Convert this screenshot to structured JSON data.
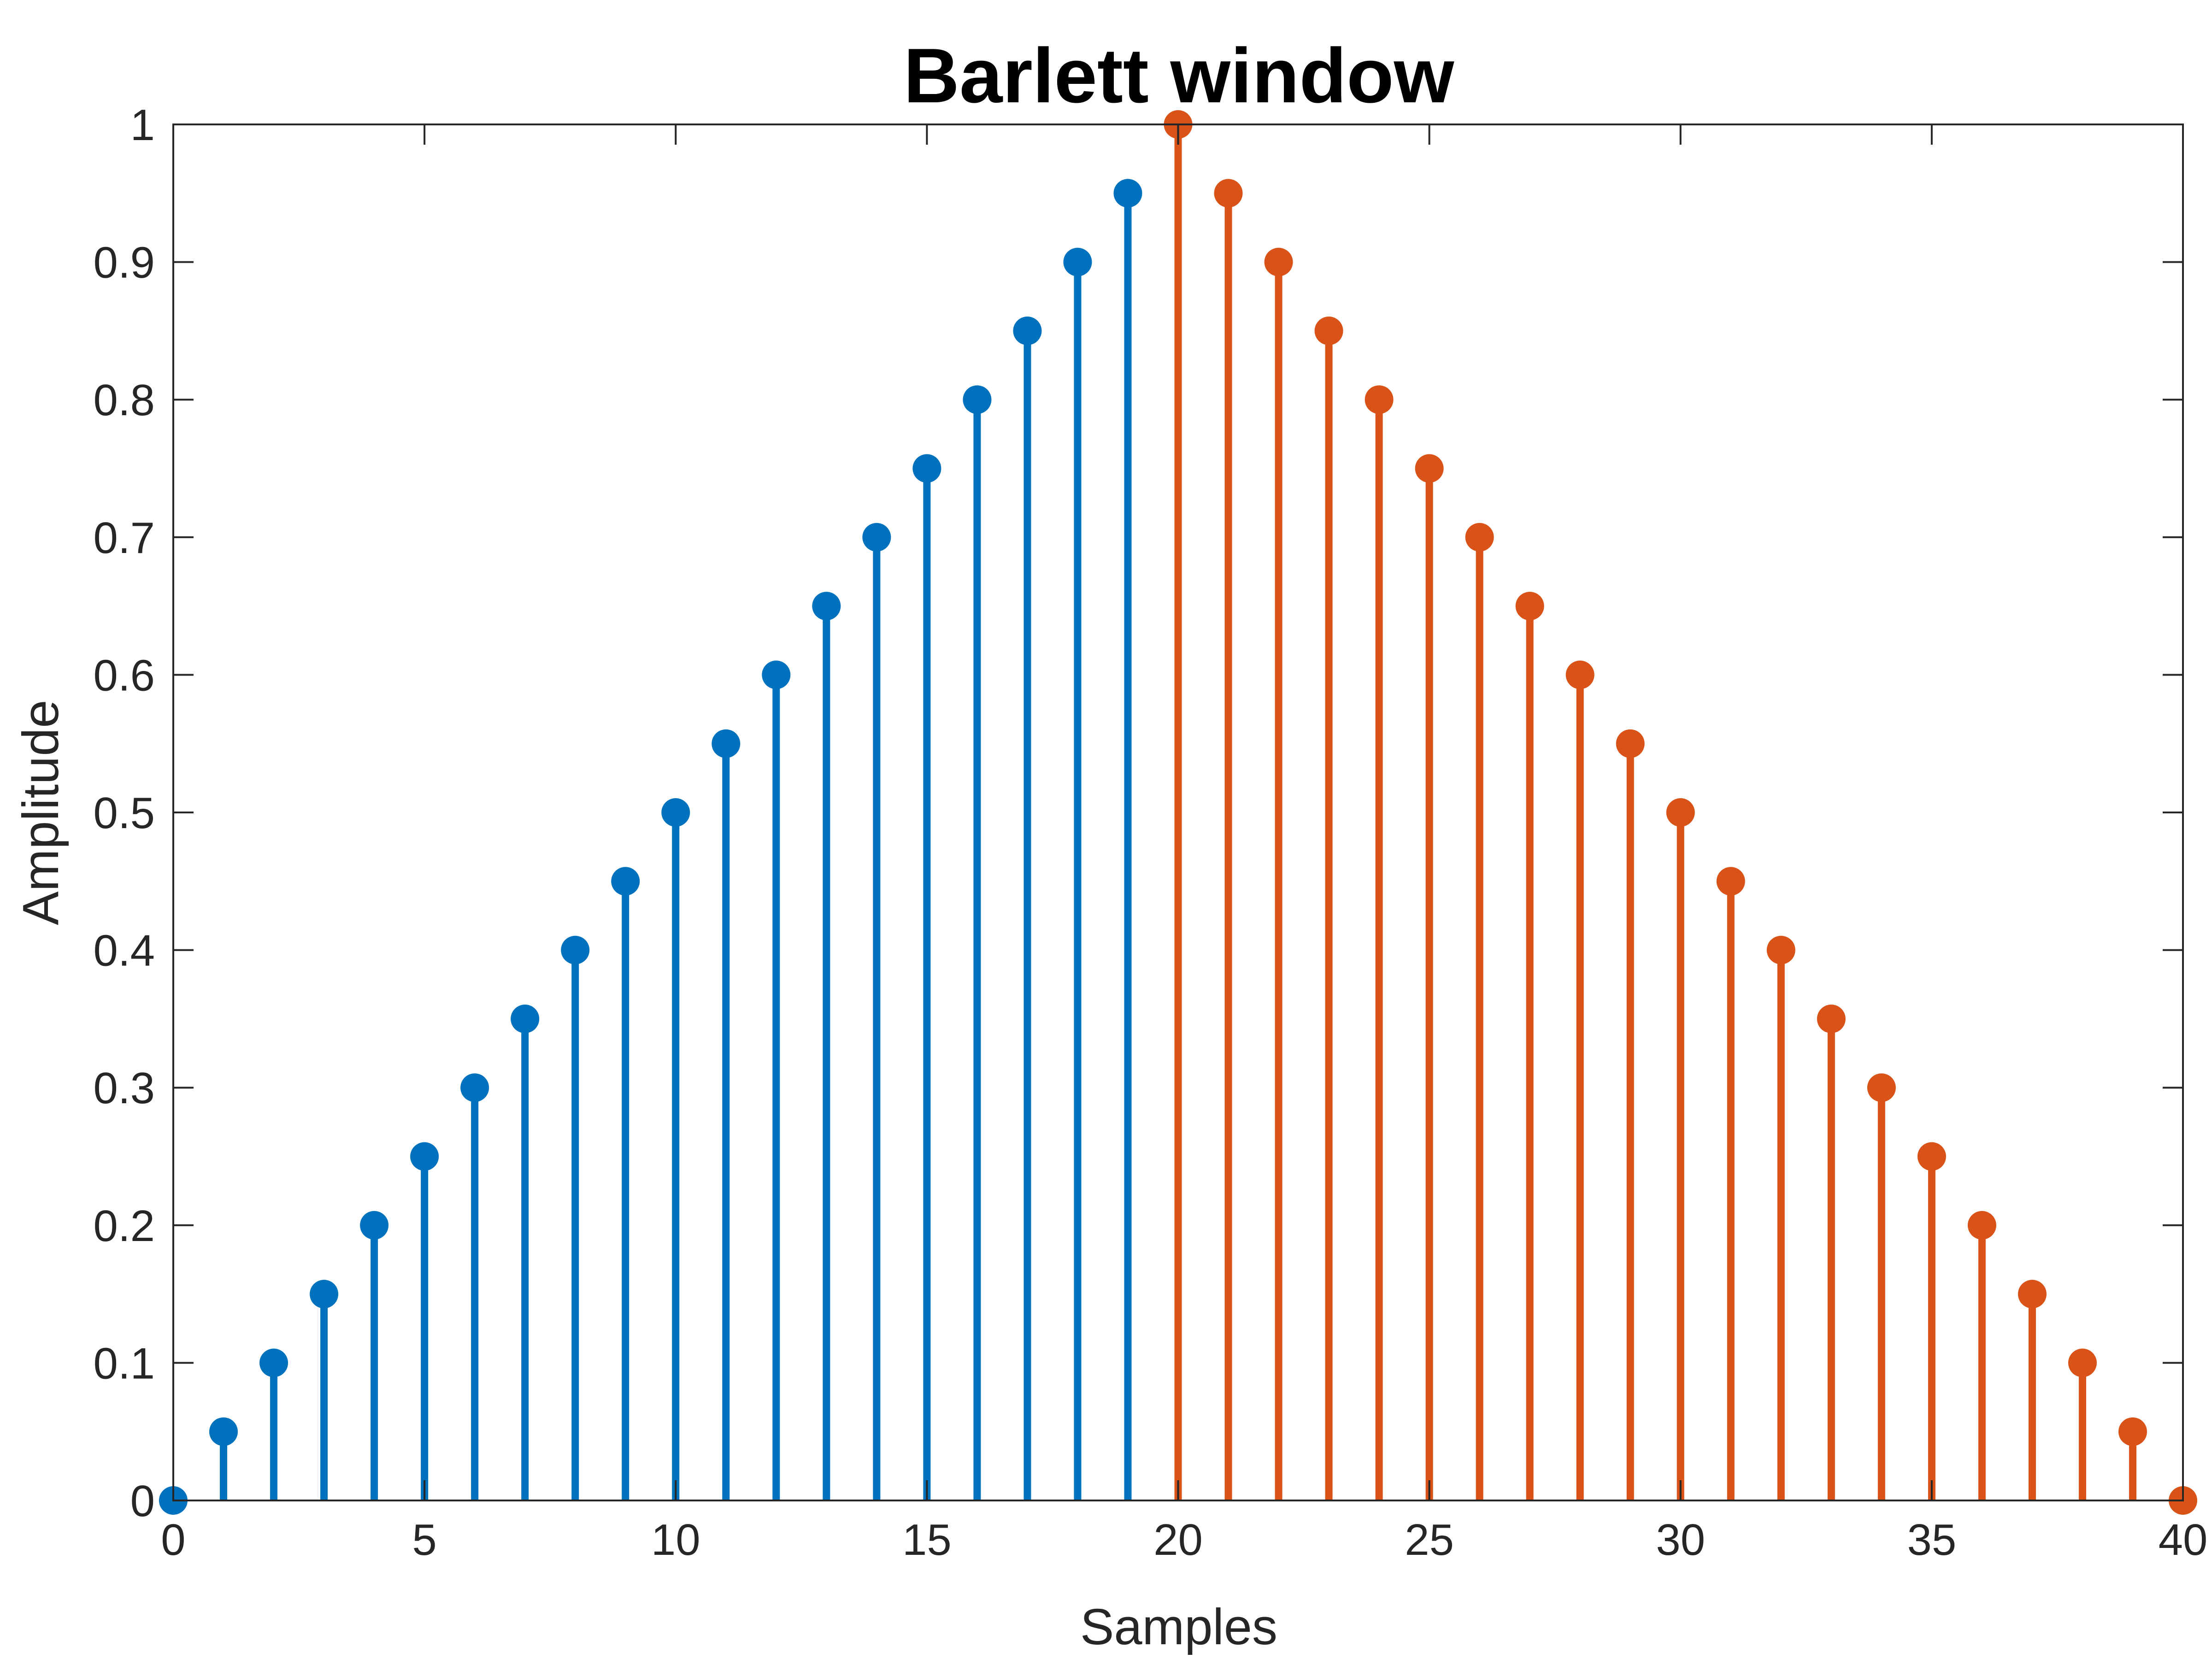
{
  "chart_data": {
    "type": "stem",
    "title": "Barlett window",
    "xlabel": "Samples",
    "ylabel": "Amplitude",
    "xlim": [
      0,
      40
    ],
    "ylim": [
      0,
      1
    ],
    "xticks": [
      0,
      5,
      10,
      15,
      20,
      25,
      30,
      35,
      40
    ],
    "yticks": [
      0,
      0.1,
      0.2,
      0.3,
      0.4,
      0.5,
      0.6,
      0.7,
      0.8,
      0.9,
      1
    ],
    "xtick_labels": [
      "0",
      "5",
      "10",
      "15",
      "20",
      "25",
      "30",
      "35",
      "40"
    ],
    "ytick_labels": [
      "0",
      "0.1",
      "0.2",
      "0.3",
      "0.4",
      "0.5",
      "0.6",
      "0.7",
      "0.8",
      "0.9",
      "1"
    ],
    "grid": false,
    "box": true,
    "series": [
      {
        "color": "#0072BD",
        "x": [
          0,
          1,
          2,
          3,
          4,
          5,
          6,
          7,
          8,
          9,
          10,
          11,
          12,
          13,
          14,
          15,
          16,
          17,
          18,
          19
        ],
        "values": [
          0,
          0.05,
          0.1,
          0.15,
          0.2,
          0.25,
          0.3,
          0.35,
          0.4,
          0.45,
          0.5,
          0.55,
          0.6,
          0.65,
          0.7,
          0.75,
          0.8,
          0.85,
          0.9,
          0.95
        ]
      },
      {
        "color": "#D95319",
        "x": [
          20,
          21,
          22,
          23,
          24,
          25,
          26,
          27,
          28,
          29,
          30,
          31,
          32,
          33,
          34,
          35,
          36,
          37,
          38,
          39,
          40
        ],
        "values": [
          1,
          0.95,
          0.9,
          0.85,
          0.8,
          0.75,
          0.7,
          0.65,
          0.6,
          0.55,
          0.5,
          0.45,
          0.4,
          0.35,
          0.3,
          0.25,
          0.2,
          0.15,
          0.1,
          0.05,
          0
        ]
      }
    ]
  }
}
